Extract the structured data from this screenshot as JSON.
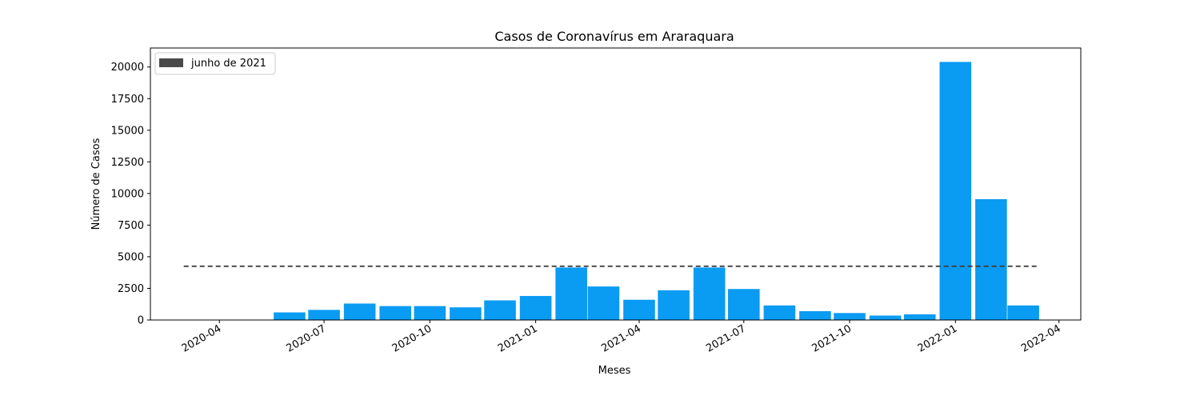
{
  "chart_data": {
    "type": "bar",
    "title": "Casos de Coronavírus em Araraquara",
    "xlabel": "Meses",
    "ylabel": "Número de Casos",
    "x": [
      "2020-05",
      "2020-06",
      "2020-07",
      "2020-08",
      "2020-09",
      "2020-10",
      "2020-11",
      "2020-12",
      "2021-01",
      "2021-02",
      "2021-03",
      "2021-04",
      "2021-05",
      "2021-06",
      "2021-07",
      "2021-08",
      "2021-09",
      "2021-10",
      "2021-11",
      "2021-12",
      "2022-01",
      "2022-02",
      "2022-03"
    ],
    "values": [
      20,
      600,
      800,
      1300,
      1100,
      1100,
      1000,
      1550,
      1900,
      4150,
      2650,
      1600,
      2350,
      4150,
      2450,
      1150,
      700,
      550,
      350,
      450,
      20400,
      9550,
      1150
    ],
    "xlim": [
      "2020-02-01",
      "2022-04-20"
    ],
    "ylim": [
      0,
      21500
    ],
    "x_ticks": [
      "2020-04",
      "2020-07",
      "2020-10",
      "2021-01",
      "2021-04",
      "2021-07",
      "2021-10",
      "2022-01",
      "2022-04"
    ],
    "y_ticks": [
      0,
      2500,
      5000,
      7500,
      10000,
      12500,
      15000,
      17500,
      20000
    ],
    "bar_color": "#0a9bf3",
    "reference_line": {
      "label": "junho de 2021",
      "value": 4250,
      "x_start": "2020-03-01",
      "x_end": "2022-03-15",
      "color": "#404040",
      "style": "dashed"
    },
    "legend": {
      "position": "top-left",
      "entries": [
        "junho de 2021"
      ]
    },
    "grid": false
  }
}
